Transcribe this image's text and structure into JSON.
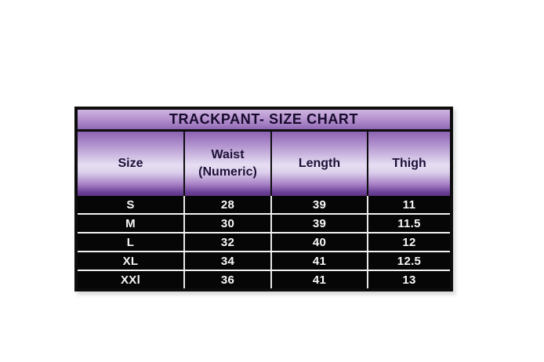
{
  "page": {
    "background_color": "#ffffff"
  },
  "size_chart": {
    "title": "TRACKPANT- SIZE CHART",
    "columns": [
      "Size",
      "Waist (Numeric)",
      "Length",
      "Thigh"
    ],
    "rows": [
      [
        "S",
        "28",
        "39",
        "11"
      ],
      [
        "M",
        "30",
        "39",
        "11.5"
      ],
      [
        "L",
        "32",
        "40",
        "12"
      ],
      [
        "XL",
        "34",
        "41",
        "12.5"
      ],
      [
        "XXl",
        "36",
        "41",
        "13"
      ]
    ],
    "colors": {
      "title_gradient_top": "#ccb5e0",
      "title_gradient_bottom": "#9873bb",
      "header_gradient_top": "#8d62b2",
      "header_gradient_light": "#e7def3",
      "header_gradient_bottom": "#5c3487",
      "outer_border": "#0d0d0d",
      "row_background": "#060606",
      "row_text": "#f8f8f8",
      "row_separator": "#f2f2f2"
    }
  },
  "chart_data": {
    "type": "table",
    "title": "TRACKPANT- SIZE CHART",
    "columns": [
      "Size",
      "Waist (Numeric)",
      "Length",
      "Thigh"
    ],
    "rows": [
      [
        "S",
        28,
        39,
        11
      ],
      [
        "M",
        30,
        39,
        11.5
      ],
      [
        "L",
        32,
        40,
        12
      ],
      [
        "XL",
        34,
        41,
        12.5
      ],
      [
        "XXl",
        36,
        41,
        13
      ]
    ]
  }
}
